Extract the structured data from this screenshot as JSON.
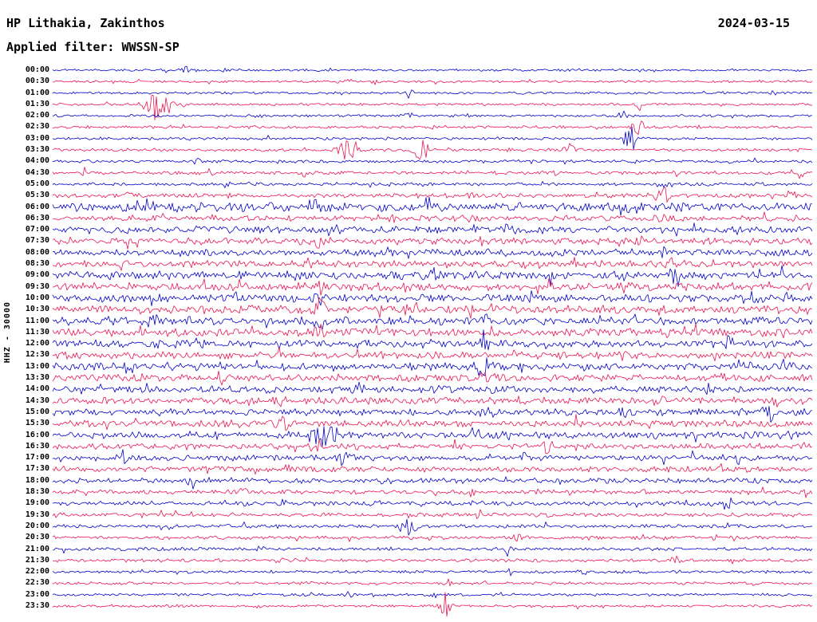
{
  "header": {
    "station_title": "HP Lithakia, Zakinthos",
    "date": "2024-03-15",
    "filter_label": "Applied filter: WWSSN-SP"
  },
  "y_axis_label": "HHZ - 30000",
  "colors": {
    "blue": "#0000cd",
    "red": "#ee1250",
    "text": "#000000",
    "background": "#ffffff"
  },
  "chart_data": {
    "type": "line",
    "subtype": "helicorder-seismogram",
    "title": "HP Lithakia, Zakinthos",
    "subtitle": "Applied filter: WWSSN-SP",
    "date": "2024-03-15",
    "channel_scale_label": "HHZ - 30000",
    "row_interval_minutes": 30,
    "x_range_minutes": 30,
    "legend": "none",
    "grid": false,
    "rows": [
      {
        "label": "00:00",
        "color": "blue",
        "noise": 1.2,
        "events": [
          [
            0.175,
            5,
            0.008
          ],
          [
            0.225,
            3,
            0.005
          ]
        ]
      },
      {
        "label": "00:30",
        "color": "red",
        "noise": 1.2,
        "events": [
          [
            0.385,
            7,
            0.006
          ],
          [
            0.425,
            4,
            0.004
          ]
        ]
      },
      {
        "label": "01:00",
        "color": "blue",
        "noise": 1.2,
        "events": [
          [
            0.47,
            9,
            0.003
          ],
          [
            0.95,
            4,
            0.006
          ]
        ]
      },
      {
        "label": "01:30",
        "color": "red",
        "noise": 1.3,
        "events": [
          [
            0.14,
            22,
            0.012
          ],
          [
            0.77,
            9,
            0.005
          ]
        ]
      },
      {
        "label": "02:00",
        "color": "blue",
        "noise": 1.3,
        "events": [
          [
            0.47,
            6,
            0.004
          ],
          [
            0.75,
            7,
            0.005
          ]
        ]
      },
      {
        "label": "02:30",
        "color": "red",
        "noise": 1.4,
        "events": [
          [
            0.5,
            5,
            0.004
          ],
          [
            0.77,
            13,
            0.006
          ]
        ]
      },
      {
        "label": "03:00",
        "color": "blue",
        "noise": 1.4,
        "events": [
          [
            0.76,
            18,
            0.006
          ]
        ]
      },
      {
        "label": "03:30",
        "color": "red",
        "noise": 1.5,
        "events": [
          [
            0.39,
            17,
            0.01
          ],
          [
            0.485,
            15,
            0.008
          ],
          [
            0.68,
            9,
            0.006
          ]
        ]
      },
      {
        "label": "04:00",
        "color": "blue",
        "noise": 1.5,
        "events": [
          [
            0.19,
            5,
            0.005
          ],
          [
            0.3,
            3,
            0.004
          ]
        ]
      },
      {
        "label": "04:30",
        "color": "red",
        "noise": 1.8,
        "events": [
          [
            0.045,
            7,
            0.006
          ],
          [
            0.21,
            8,
            0.006
          ],
          [
            0.33,
            5,
            0.004
          ],
          [
            0.66,
            6,
            0.005
          ],
          [
            0.985,
            7,
            0.004
          ]
        ]
      },
      {
        "label": "05:00",
        "color": "blue",
        "noise": 1.6,
        "events": [
          [
            0.23,
            5,
            0.004
          ],
          [
            0.8,
            6,
            0.005
          ]
        ]
      },
      {
        "label": "05:30",
        "color": "red",
        "noise": 2.2,
        "events": [
          [
            0.1,
            7,
            0.006
          ],
          [
            0.55,
            6,
            0.005
          ],
          [
            0.8,
            14,
            0.008
          ],
          [
            0.97,
            8,
            0.005
          ]
        ]
      },
      {
        "label": "06:00",
        "color": "blue",
        "noise": 4.5,
        "events": [
          [
            0.12,
            8,
            0.01
          ],
          [
            0.35,
            7,
            0.01
          ],
          [
            0.75,
            8,
            0.008
          ]
        ]
      },
      {
        "label": "06:30",
        "color": "red",
        "noise": 3.0,
        "events": [
          [
            0.45,
            6,
            0.006
          ],
          [
            0.8,
            8,
            0.006
          ]
        ]
      },
      {
        "label": "07:00",
        "color": "blue",
        "noise": 3.5,
        "events": [
          [
            0.37,
            7,
            0.008
          ],
          [
            0.6,
            6,
            0.006
          ],
          [
            0.9,
            6,
            0.006
          ]
        ]
      },
      {
        "label": "07:30",
        "color": "red",
        "noise": 3.5,
        "events": [
          [
            0.35,
            9,
            0.008
          ],
          [
            0.56,
            7,
            0.006
          ],
          [
            0.77,
            8,
            0.005
          ]
        ]
      },
      {
        "label": "08:00",
        "color": "blue",
        "noise": 3.5,
        "events": [
          [
            0.5,
            7,
            0.006
          ],
          [
            0.8,
            9,
            0.006
          ]
        ]
      },
      {
        "label": "08:30",
        "color": "red",
        "noise": 3.5,
        "events": [
          [
            0.34,
            8,
            0.006
          ],
          [
            0.62,
            7,
            0.006
          ],
          [
            0.81,
            10,
            0.006
          ]
        ]
      },
      {
        "label": "09:00",
        "color": "blue",
        "noise": 4.0,
        "events": [
          [
            0.25,
            8,
            0.008
          ],
          [
            0.5,
            8,
            0.008
          ],
          [
            0.82,
            12,
            0.006
          ]
        ]
      },
      {
        "label": "09:30",
        "color": "red",
        "noise": 4.0,
        "events": [
          [
            0.35,
            10,
            0.01
          ],
          [
            0.45,
            8,
            0.008
          ],
          [
            0.75,
            9,
            0.006
          ]
        ]
      },
      {
        "label": "10:00",
        "color": "blue",
        "noise": 4.0,
        "events": [
          [
            0.35,
            9,
            0.008
          ],
          [
            0.57,
            8,
            0.006
          ],
          [
            0.92,
            10,
            0.006
          ]
        ]
      },
      {
        "label": "10:30",
        "color": "red",
        "noise": 4.0,
        "events": [
          [
            0.35,
            12,
            0.01
          ],
          [
            0.47,
            8,
            0.006
          ],
          [
            0.99,
            8,
            0.004
          ]
        ]
      },
      {
        "label": "11:00",
        "color": "blue",
        "noise": 4.0,
        "events": [
          [
            0.13,
            8,
            0.006
          ],
          [
            0.35,
            10,
            0.008
          ],
          [
            0.57,
            9,
            0.006
          ]
        ]
      },
      {
        "label": "11:30",
        "color": "red",
        "noise": 4.0,
        "events": [
          [
            0.12,
            8,
            0.006
          ],
          [
            0.35,
            9,
            0.008
          ],
          [
            0.97,
            9,
            0.005
          ]
        ]
      },
      {
        "label": "12:00",
        "color": "blue",
        "noise": 4.0,
        "events": [
          [
            0.57,
            10,
            0.006
          ],
          [
            0.89,
            13,
            0.008
          ]
        ]
      },
      {
        "label": "12:30",
        "color": "red",
        "noise": 3.5,
        "events": [
          [
            0.3,
            8,
            0.008
          ],
          [
            0.75,
            8,
            0.006
          ]
        ]
      },
      {
        "label": "13:00",
        "color": "blue",
        "noise": 4.0,
        "events": [
          [
            0.1,
            8,
            0.006
          ],
          [
            0.565,
            16,
            0.01
          ],
          [
            0.9,
            8,
            0.006
          ]
        ]
      },
      {
        "label": "13:30",
        "color": "red",
        "noise": 3.5,
        "events": [
          [
            0.22,
            9,
            0.006
          ],
          [
            0.57,
            10,
            0.006
          ],
          [
            0.88,
            8,
            0.006
          ]
        ]
      },
      {
        "label": "14:00",
        "color": "blue",
        "noise": 3.5,
        "events": [
          [
            0.4,
            12,
            0.006
          ],
          [
            0.57,
            9,
            0.006
          ],
          [
            0.86,
            8,
            0.006
          ]
        ]
      },
      {
        "label": "14:30",
        "color": "red",
        "noise": 3.5,
        "events": [
          [
            0.3,
            9,
            0.006
          ],
          [
            0.8,
            10,
            0.006
          ],
          [
            0.95,
            8,
            0.005
          ]
        ]
      },
      {
        "label": "15:00",
        "color": "blue",
        "noise": 3.5,
        "events": [
          [
            0.57,
            9,
            0.006
          ],
          [
            0.75,
            8,
            0.006
          ],
          [
            0.94,
            12,
            0.008
          ]
        ]
      },
      {
        "label": "15:30",
        "color": "red",
        "noise": 3.5,
        "events": [
          [
            0.3,
            10,
            0.008
          ],
          [
            0.69,
            8,
            0.006
          ]
        ]
      },
      {
        "label": "16:00",
        "color": "blue",
        "noise": 3.5,
        "events": [
          [
            0.21,
            8,
            0.006
          ],
          [
            0.355,
            18,
            0.012
          ]
        ]
      },
      {
        "label": "16:30",
        "color": "red",
        "noise": 3.0,
        "events": [
          [
            0.35,
            9,
            0.008
          ],
          [
            0.65,
            8,
            0.006
          ]
        ]
      },
      {
        "label": "17:00",
        "color": "blue",
        "noise": 3.0,
        "events": [
          [
            0.095,
            10,
            0.006
          ],
          [
            0.38,
            8,
            0.006
          ],
          [
            0.62,
            8,
            0.006
          ],
          [
            0.9,
            8,
            0.006
          ]
        ]
      },
      {
        "label": "17:30",
        "color": "red",
        "noise": 2.8,
        "events": [
          [
            0.31,
            8,
            0.006
          ],
          [
            0.88,
            6,
            0.005
          ]
        ]
      },
      {
        "label": "18:00",
        "color": "blue",
        "noise": 2.5,
        "events": [
          [
            0.185,
            8,
            0.006
          ],
          [
            0.44,
            6,
            0.005
          ]
        ]
      },
      {
        "label": "18:30",
        "color": "red",
        "noise": 2.2,
        "events": [
          [
            0.25,
            6,
            0.005
          ],
          [
            0.55,
            6,
            0.005
          ],
          [
            0.78,
            5,
            0.004
          ]
        ]
      },
      {
        "label": "19:00",
        "color": "blue",
        "noise": 2.2,
        "events": [
          [
            0.3,
            6,
            0.005
          ],
          [
            0.89,
            12,
            0.005
          ]
        ]
      },
      {
        "label": "19:30",
        "color": "red",
        "noise": 2.0,
        "events": [
          [
            0.12,
            5,
            0.004
          ],
          [
            0.56,
            5,
            0.004
          ]
        ]
      },
      {
        "label": "20:00",
        "color": "blue",
        "noise": 1.8,
        "events": [
          [
            0.465,
            15,
            0.008
          ],
          [
            0.6,
            5,
            0.004
          ]
        ]
      },
      {
        "label": "20:30",
        "color": "red",
        "noise": 1.8,
        "events": [
          [
            0.61,
            8,
            0.004
          ],
          [
            0.87,
            5,
            0.004
          ]
        ]
      },
      {
        "label": "21:00",
        "color": "blue",
        "noise": 1.6,
        "events": [
          [
            0.115,
            5,
            0.005
          ],
          [
            0.275,
            6,
            0.004
          ],
          [
            0.6,
            12,
            0.005
          ]
        ]
      },
      {
        "label": "21:30",
        "color": "red",
        "noise": 1.6,
        "events": [
          [
            0.3,
            4,
            0.004
          ],
          [
            0.82,
            7,
            0.005
          ]
        ]
      },
      {
        "label": "22:00",
        "color": "blue",
        "noise": 1.4,
        "events": [
          [
            0.6,
            4,
            0.004
          ],
          [
            0.7,
            4,
            0.004
          ]
        ]
      },
      {
        "label": "22:30",
        "color": "red",
        "noise": 1.4,
        "events": [
          [
            0.52,
            6,
            0.004
          ]
        ]
      },
      {
        "label": "23:00",
        "color": "blue",
        "noise": 1.4,
        "events": [
          [
            0.39,
            5,
            0.005
          ],
          [
            0.5,
            4,
            0.004
          ]
        ]
      },
      {
        "label": "23:30",
        "color": "red",
        "noise": 1.4,
        "events": [
          [
            0.27,
            4,
            0.004
          ],
          [
            0.515,
            17,
            0.006
          ]
        ]
      }
    ]
  }
}
